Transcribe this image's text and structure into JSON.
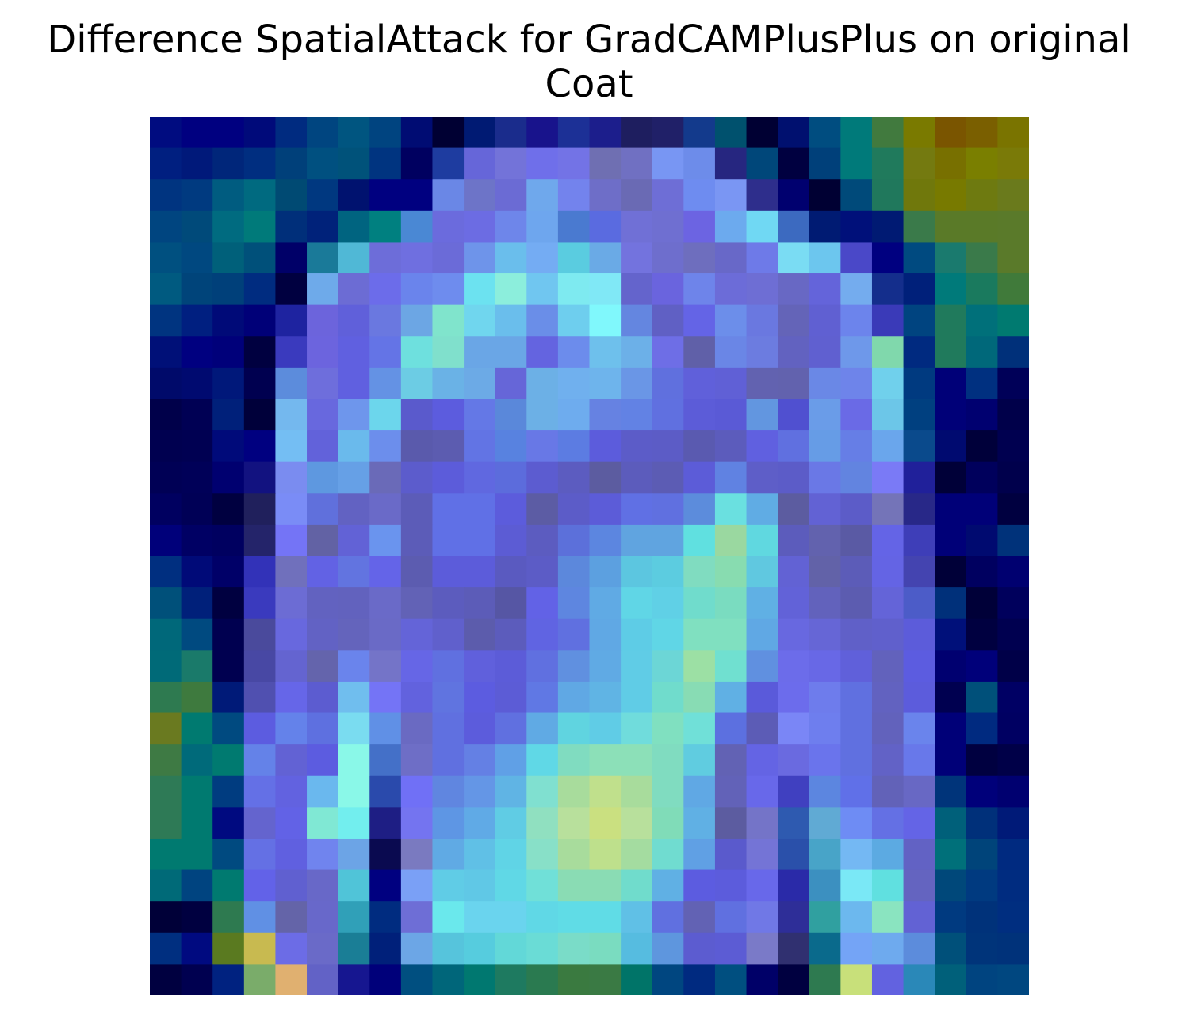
{
  "chart_data": {
    "type": "heatmap",
    "title_line1": "Difference SpatialAttack for GradCAMPlusPlus on original",
    "title_line2": "Coat",
    "axes": "off",
    "grid": false,
    "rows": 28,
    "cols": 28,
    "cell_colors": [
      [
        "#000C80",
        "#000080",
        "#000080",
        "#000A7A",
        "#002B80",
        "#004580",
        "#005580",
        "#004480",
        "#000C73",
        "#000033",
        "#001A73",
        "#1A2C8C",
        "#18138C",
        "#1C3096",
        "#1C1E8C",
        "#1E1E5F",
        "#202068",
        "#133A8C",
        "#00516E",
        "#000033",
        "#00106F",
        "#004D80",
        "#007A7A",
        "#417A3E",
        "#7A7A00",
        "#7A5500",
        "#7A5F00",
        "#7A7400"
      ],
      [
        "#001F80",
        "#00197A",
        "#00267A",
        "#002E80",
        "#00407A",
        "#005080",
        "#00527A",
        "#003480",
        "#000060",
        "#1E3CA0",
        "#6666D9",
        "#7373D9",
        "#6F6FEA",
        "#7373E6",
        "#6F6FB2",
        "#7070C2",
        "#7896F3",
        "#6D8CEA",
        "#262680",
        "#00477A",
        "#000040",
        "#00407A",
        "#007A7A",
        "#207A5C",
        "#747A10",
        "#787000",
        "#7A7F00",
        "#7A7A08"
      ],
      [
        "#003480",
        "#003A80",
        "#005C80",
        "#006A80",
        "#004A73",
        "#003880",
        "#00126F",
        "#000080",
        "#000080",
        "#6A87E6",
        "#6D74C8",
        "#6B6BD4",
        "#6FA8EC",
        "#7383ED",
        "#6E6EC8",
        "#6A6AB4",
        "#6E6ED6",
        "#6E8CF0",
        "#7A96F3",
        "#2E2E8C",
        "#00006F",
        "#000033",
        "#004A7A",
        "#20785C",
        "#70780C",
        "#787A00",
        "#6E7A10",
        "#6A7A1C"
      ],
      [
        "#004580",
        "#004A7A",
        "#006B80",
        "#007A7A",
        "#002F7A",
        "#00227A",
        "#006480",
        "#008080",
        "#4A88D4",
        "#6B6BDD",
        "#6C6CE3",
        "#6E86EA",
        "#6EA6EE",
        "#4A7AD0",
        "#5A6BE0",
        "#7070D6",
        "#6F6FD1",
        "#6C64E2",
        "#6CAAEE",
        "#70D8F3",
        "#3C6AC0",
        "#001B73",
        "#00107A",
        "#001A73",
        "#3A7A4A",
        "#5A7A28",
        "#5A7A28",
        "#5A7A2A"
      ],
      [
        "#005080",
        "#004880",
        "#00607A",
        "#00507A",
        "#000068",
        "#1A7A99",
        "#50B8D6",
        "#6D6DD9",
        "#6F6FE0",
        "#6B6BD8",
        "#6E94EA",
        "#6ABEEC",
        "#74ACF3",
        "#5ACCE0",
        "#6AAAE6",
        "#7373DE",
        "#6E6ECD",
        "#6E6EBE",
        "#6868C8",
        "#6E7AE8",
        "#7ADCF3",
        "#6CC6EE",
        "#4A48C8",
        "#000080",
        "#004A80",
        "#1A7A6E",
        "#3A7A4A",
        "#5A7A2A"
      ],
      [
        "#005A80",
        "#00447A",
        "#00407A",
        "#002C80",
        "#000040",
        "#6EAAEA",
        "#6C6CD4",
        "#6C6CEA",
        "#6A84EC",
        "#6E8CEE",
        "#6CE2F0",
        "#8CEEDC",
        "#70C6F0",
        "#7EEAF0",
        "#80E8F6",
        "#6464CC",
        "#6A64DE",
        "#6E84EA",
        "#6C6CD8",
        "#6E6ED4",
        "#6868C4",
        "#6464DA",
        "#74ACEE",
        "#142E8C",
        "#00207A",
        "#007A7A",
        "#1A7A5E",
        "#407A3A"
      ],
      [
        "#003480",
        "#001F80",
        "#000A78",
        "#000078",
        "#1E23A0",
        "#6C64DC",
        "#6060DA",
        "#6A78E0",
        "#6CA6E4",
        "#80E4CC",
        "#70D6EE",
        "#6ABEEC",
        "#6A8EE8",
        "#6ECEEE",
        "#80F8FC",
        "#6486E0",
        "#6060C4",
        "#6464E6",
        "#6C8EEA",
        "#6A78E0",
        "#6464B8",
        "#6060D2",
        "#6C84EC",
        "#3A3AB8",
        "#004480",
        "#207A5C",
        "#00707A",
        "#007A70"
      ],
      [
        "#001078",
        "#000080",
        "#00007A",
        "#000040",
        "#3A3ABE",
        "#6C64DE",
        "#6060E0",
        "#6474E6",
        "#6EE0DE",
        "#80E0CC",
        "#6AA6E6",
        "#6AA6E6",
        "#6464E0",
        "#6C8CEC",
        "#6EC0EC",
        "#6CB0E8",
        "#6E6EE6",
        "#6060A8",
        "#6A86E6",
        "#6C7CE0",
        "#6262C0",
        "#6060D0",
        "#6E98EA",
        "#80D8AC",
        "#002A80",
        "#207A5C",
        "#00687A",
        "#00307A"
      ],
      [
        "#000A6A",
        "#000A70",
        "#00187A",
        "#000050",
        "#5C8CDC",
        "#6E6EDC",
        "#6060E0",
        "#6492E4",
        "#6CCCE4",
        "#6AB2E6",
        "#6CAAE6",
        "#6666D8",
        "#6CB0E6",
        "#70B0EE",
        "#6EB4EC",
        "#6A96E6",
        "#6070DE",
        "#6060DA",
        "#6060D6",
        "#6262B0",
        "#6262AE",
        "#6A88E6",
        "#6E84EA",
        "#70D0EC",
        "#003A80",
        "#000078",
        "#003080",
        "#000058"
      ],
      [
        "#00004A",
        "#000054",
        "#00207A",
        "#00003A",
        "#74B8EE",
        "#6868DE",
        "#6E96EC",
        "#6CD6EC",
        "#5A5ACC",
        "#5C5CDE",
        "#6478E6",
        "#5A88DA",
        "#6CB0E6",
        "#6EACEE",
        "#6682E2",
        "#6282E4",
        "#6070E0",
        "#5C5CD8",
        "#5A5AD6",
        "#6296E0",
        "#5050D0",
        "#6A9CE8",
        "#6A6AE6",
        "#6CC6E8",
        "#004080",
        "#000078",
        "#000070",
        "#00004A"
      ],
      [
        "#000050",
        "#000052",
        "#000A7A",
        "#000080",
        "#74BEF3",
        "#6262DA",
        "#6ABAEC",
        "#6C8EEC",
        "#5A5AAC",
        "#5C5CB0",
        "#6274E4",
        "#5882E0",
        "#6878E6",
        "#5C7CE2",
        "#5C5CDC",
        "#5C5CC8",
        "#5C5CC6",
        "#5A5AB0",
        "#5C5CBC",
        "#6060E0",
        "#6070E0",
        "#669CE6",
        "#667EE6",
        "#6AA6EC",
        "#0A4A8C",
        "#000A70",
        "#00003A",
        "#000050"
      ],
      [
        "#000055",
        "#000058",
        "#000070",
        "#121280",
        "#7A8CF0",
        "#5E98E0",
        "#66A0E6",
        "#6A6AB8",
        "#5C5CCC",
        "#5C5CDA",
        "#6068E0",
        "#5C6CDC",
        "#5C5CD0",
        "#5C5CC0",
        "#5C5CA0",
        "#5C5CBC",
        "#5C5CB4",
        "#5C5CD8",
        "#6082E2",
        "#5E5EC8",
        "#5C5CC8",
        "#6A78E6",
        "#6284E0",
        "#7A7AF6",
        "#20209A",
        "#000038",
        "#00005C",
        "#00004C"
      ],
      [
        "#000060",
        "#000056",
        "#000040",
        "#20205C",
        "#7A8CF6",
        "#6070DC",
        "#6262C2",
        "#6A6AC8",
        "#5C5CB8",
        "#6070E6",
        "#6070E6",
        "#5C5CDC",
        "#5C5CA4",
        "#5C5CC8",
        "#5C5CD8",
        "#6070E4",
        "#6070E0",
        "#5C8CDC",
        "#6AE0E0",
        "#60ACE4",
        "#5C5CA0",
        "#6262D4",
        "#5C5CC8",
        "#7474B8",
        "#282888",
        "#000078",
        "#000078",
        "#000040"
      ],
      [
        "#00007A",
        "#000064",
        "#000060",
        "#24246A",
        "#7474F6",
        "#6262A4",
        "#6262D6",
        "#6A94EE",
        "#5C5CB8",
        "#6070E6",
        "#6070E6",
        "#5C5CD4",
        "#5C5CC0",
        "#5C70DA",
        "#5C86E0",
        "#60A4E0",
        "#60A4E0",
        "#60E0E0",
        "#9AD8A0",
        "#60D8E0",
        "#5C5CBC",
        "#6262AE",
        "#5A5AA4",
        "#6464E6",
        "#3E3EB8",
        "#000078",
        "#000A70",
        "#00327A"
      ],
      [
        "#002F80",
        "#000A78",
        "#000068",
        "#3232B8",
        "#7070BC",
        "#6262E4",
        "#6274E0",
        "#6464E8",
        "#5C5CB0",
        "#5C5CDA",
        "#5C5CDA",
        "#5A5AC0",
        "#5C5CC6",
        "#5C88DC",
        "#5CA0E0",
        "#5CC6E0",
        "#5CCCE0",
        "#80DCC0",
        "#88DCB0",
        "#60C8E0",
        "#6262D4",
        "#6262A8",
        "#5C5CB8",
        "#6464E4",
        "#4444B0",
        "#000038",
        "#000060",
        "#000070"
      ],
      [
        "#00507A",
        "#00207A",
        "#000040",
        "#3A3ABE",
        "#6C6CD4",
        "#6262C0",
        "#6262BE",
        "#6A6AC8",
        "#6262B6",
        "#5C5CBE",
        "#5C5CB8",
        "#5656A4",
        "#6262E6",
        "#5E86E0",
        "#60AAE4",
        "#60D6E6",
        "#60D0E6",
        "#70DCCC",
        "#7ADCC0",
        "#60B0E4",
        "#6262D8",
        "#6262BC",
        "#5C5CB0",
        "#6464D8",
        "#4C5CC8",
        "#00307A",
        "#000038",
        "#00005C"
      ],
      [
        "#00687A",
        "#004A80",
        "#000050",
        "#4A4A9C",
        "#6868DE",
        "#6262C4",
        "#6464BC",
        "#6A6AC6",
        "#6464D8",
        "#6060CC",
        "#5C5CAC",
        "#5C5CBC",
        "#6064E2",
        "#6070E0",
        "#60A8E4",
        "#5ECCE6",
        "#60D6E6",
        "#80E0C0",
        "#80E0C0",
        "#60A8E4",
        "#6868E0",
        "#6666D6",
        "#6060C8",
        "#6060CC",
        "#5C5CDA",
        "#00107A",
        "#000040",
        "#000050"
      ],
      [
        "#006A78",
        "#1A7A6A",
        "#000050",
        "#4848A4",
        "#6464D0",
        "#6464AC",
        "#6A84EC",
        "#7474C8",
        "#6666E6",
        "#6070E0",
        "#6060DC",
        "#5C5CD8",
        "#6070E0",
        "#6090E0",
        "#60AAE4",
        "#60CCE6",
        "#6CD6D6",
        "#9CE0A4",
        "#70E0D0",
        "#6090E0",
        "#6C6CEA",
        "#6868E6",
        "#6060DA",
        "#6262BC",
        "#5C5CE0",
        "#000070",
        "#00007A",
        "#000048"
      ],
      [
        "#2E7A50",
        "#3E7A3E",
        "#001A78",
        "#5050B0",
        "#6666E8",
        "#5C5CD0",
        "#70BEEE",
        "#7474F6",
        "#6262DE",
        "#6074E0",
        "#5C5CE0",
        "#5C5CD6",
        "#6078E4",
        "#60A8E4",
        "#60B4E4",
        "#60CCE6",
        "#70DCCC",
        "#88DCB4",
        "#60B0E4",
        "#5A5ADA",
        "#6C6CEC",
        "#6E7CEC",
        "#6070E0",
        "#6262C0",
        "#5C5CDC",
        "#000050",
        "#00507A",
        "#000064"
      ],
      [
        "#6A7A20",
        "#007A70",
        "#004A80",
        "#5C5CE0",
        "#6482EA",
        "#5E70E0",
        "#7ADCF0",
        "#6090E6",
        "#6A6AC2",
        "#6070E0",
        "#5C5CDC",
        "#6070E0",
        "#60AAE4",
        "#60D4E0",
        "#60CCE6",
        "#70DCDC",
        "#80E0C0",
        "#70E0D8",
        "#5C70E0",
        "#5C5CB6",
        "#7A86F6",
        "#6E7EEE",
        "#6070E0",
        "#6262BC",
        "#6A84EC",
        "#000078",
        "#002A80",
        "#000062"
      ],
      [
        "#3E7A44",
        "#006A7A",
        "#007A70",
        "#6482E8",
        "#6262D4",
        "#5C5CE0",
        "#8AF8E8",
        "#4470C8",
        "#6E6EC6",
        "#6070E0",
        "#6480E4",
        "#60A0E6",
        "#60D8E6",
        "#80DCC0",
        "#8CE0B8",
        "#8CE0B8",
        "#80DCC0",
        "#60CCE0",
        "#6262B4",
        "#6464E4",
        "#6A6AE0",
        "#6A74EC",
        "#6070E0",
        "#6262C6",
        "#6878EA",
        "#000078",
        "#000040",
        "#000048"
      ],
      [
        "#2E7A56",
        "#007A70",
        "#003C80",
        "#6470E6",
        "#6262E0",
        "#6AB8EE",
        "#8AF8E8",
        "#2A4AAC",
        "#7070F6",
        "#6086E0",
        "#6496E6",
        "#60B4E4",
        "#80E0D0",
        "#A8DC9C",
        "#C0E08C",
        "#A8DC9C",
        "#80DCC0",
        "#60A8E4",
        "#6262B8",
        "#6868EA",
        "#4040C0",
        "#5C86E0",
        "#6070E8",
        "#6262B8",
        "#6868C4",
        "#00347A",
        "#00007A",
        "#000070"
      ],
      [
        "#2E7A56",
        "#007A70",
        "#000A80",
        "#6464CE",
        "#6262E6",
        "#80E8D4",
        "#72EEEE",
        "#1E1E84",
        "#7474F0",
        "#5E96E4",
        "#60AAE6",
        "#60CCE4",
        "#90E0C0",
        "#B8E09C",
        "#CAE080",
        "#B8E09C",
        "#80DCB8",
        "#60B0E4",
        "#5C5CA0",
        "#7474C8",
        "#2E5AB0",
        "#60AAD4",
        "#6E8CF4",
        "#6470E4",
        "#6464E6",
        "#00607A",
        "#00307A",
        "#001A78"
      ],
      [
        "#007A70",
        "#007A70",
        "#004A80",
        "#6470E4",
        "#6060E0",
        "#7084EE",
        "#6CA4E6",
        "#0A0A50",
        "#7A7AC0",
        "#60AAE4",
        "#60C0E6",
        "#60D4E6",
        "#88E0C8",
        "#A8DC9C",
        "#BEE08C",
        "#A4DCA0",
        "#70DCD0",
        "#60A0E4",
        "#5A5ACC",
        "#7474D6",
        "#2A50AA",
        "#48A4C8",
        "#74B8F3",
        "#5CAAE2",
        "#6262C4",
        "#00707A",
        "#00447A",
        "#002A80"
      ],
      [
        "#006A78",
        "#004480",
        "#007A70",
        "#6262E8",
        "#6060D0",
        "#6868C8",
        "#50C4D8",
        "#000080",
        "#7AA0F6",
        "#60CCE6",
        "#60C8E6",
        "#60D8E6",
        "#70E0D8",
        "#8ADCB4",
        "#8ADCB4",
        "#70DCCC",
        "#60B0E4",
        "#5C5CE0",
        "#5C5CDC",
        "#6868EA",
        "#2A2AA8",
        "#3C90C0",
        "#7AE8F6",
        "#60E0E0",
        "#6464C0",
        "#00487A",
        "#003A80",
        "#002C80"
      ],
      [
        "#000038",
        "#000040",
        "#2E7A50",
        "#6090E4",
        "#6464A8",
        "#6868CA",
        "#30A0B8",
        "#002C80",
        "#6E6ED6",
        "#6AE8EC",
        "#6AD4EE",
        "#6AD4EE",
        "#60D8E6",
        "#60DCE6",
        "#60DCE6",
        "#60C0E6",
        "#6070E0",
        "#6262B4",
        "#6070E0",
        "#7078E6",
        "#2E2E98",
        "#30A0A0",
        "#6CB8EE",
        "#8AE4C0",
        "#6262D4",
        "#003A80",
        "#00327A",
        "#002E80"
      ],
      [
        "#002F80",
        "#000A80",
        "#5A7A20",
        "#C8BA50",
        "#6C6CE6",
        "#6A6AC8",
        "#1A7E96",
        "#00207A",
        "#6CA6E6",
        "#56C4DC",
        "#56CCDE",
        "#62D8D8",
        "#6ADCD6",
        "#7ADCC8",
        "#7ADCC0",
        "#56BCE0",
        "#5E96DE",
        "#5C5CD0",
        "#5C5CD4",
        "#7A7AC8",
        "#303070",
        "#0A6A8C",
        "#74A4F6",
        "#6EAAEE",
        "#5C8CDC",
        "#00507A",
        "#00347A",
        "#00327A"
      ],
      [
        "#000040",
        "#000050",
        "#002280",
        "#7AAC6A",
        "#E0B070",
        "#6262C6",
        "#161690",
        "#00007A",
        "#004F80",
        "#00667A",
        "#007870",
        "#1E7A60",
        "#2A7A50",
        "#3A7A40",
        "#3A7A44",
        "#007468",
        "#004680",
        "#002A80",
        "#004F80",
        "#000068",
        "#000040",
        "#2E7A50",
        "#C8E07A",
        "#6262E0",
        "#2A88B8",
        "#00607A",
        "#004480",
        "#004780"
      ]
    ]
  }
}
